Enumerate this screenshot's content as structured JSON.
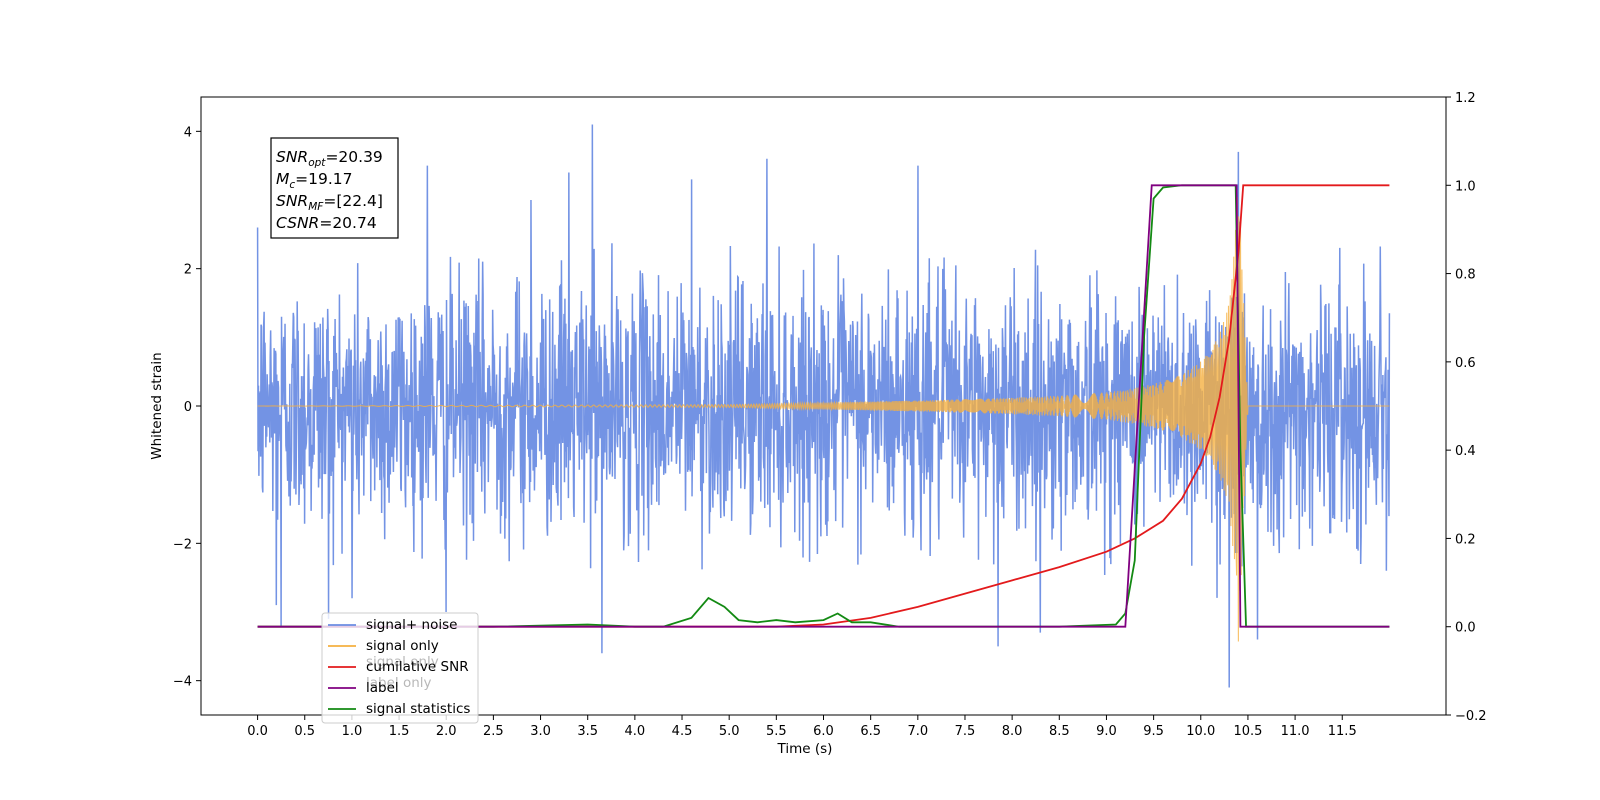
{
  "chart_data": {
    "type": "line",
    "title": "",
    "xlabel": "Time (s)",
    "ylabel": "Whitened strain",
    "ylabel_right": "",
    "xlim": [
      -0.6,
      12.6
    ],
    "ylim": [
      -4.5,
      4.5
    ],
    "ylim_right": [
      -0.2,
      1.2
    ],
    "x_ticks": [
      "0.0",
      "0.5",
      "1.0",
      "1.5",
      "2.0",
      "2.5",
      "3.0",
      "3.5",
      "4.0",
      "4.5",
      "5.0",
      "5.5",
      "6.0",
      "6.5",
      "7.0",
      "7.5",
      "8.0",
      "8.5",
      "9.0",
      "9.5",
      "10.0",
      "10.5",
      "11.0",
      "11.5"
    ],
    "y_ticks": [
      "4",
      "2",
      "0",
      "−2",
      "−4"
    ],
    "y_ticks_right": [
      "1.2",
      "1.0",
      "0.8",
      "0.6",
      "0.4",
      "0.2",
      "0.0",
      "−0.2"
    ],
    "legend_position": "lower-left",
    "grid": false,
    "info_box": {
      "snr_opt": "=20.39",
      "mc": "=19.17",
      "snr_mf": "=[22.4]",
      "csnr": "=20.74"
    },
    "series": [
      {
        "name": "signal+ noise",
        "axis": "left",
        "color": "#6b8de3",
        "description_points": {
          "x": [
            0.0,
            12.0
          ],
          "noise_std": 0.9,
          "extreme_peaks": [
            {
              "x": 0.0,
              "y": 2.6
            },
            {
              "x": 0.2,
              "y": -2.9
            },
            {
              "x": 0.25,
              "y": -3.2
            },
            {
              "x": 0.75,
              "y": 2.6
            },
            {
              "x": 0.75,
              "y": -3.1
            },
            {
              "x": 1.0,
              "y": -2.8
            },
            {
              "x": 1.8,
              "y": 3.5
            },
            {
              "x": 2.0,
              "y": -3.0
            },
            {
              "x": 2.9,
              "y": 3.0
            },
            {
              "x": 3.3,
              "y": 3.4
            },
            {
              "x": 3.55,
              "y": 4.1
            },
            {
              "x": 3.65,
              "y": -3.6
            },
            {
              "x": 4.6,
              "y": 3.3
            },
            {
              "x": 5.4,
              "y": 3.6
            },
            {
              "x": 7.0,
              "y": 3.5
            },
            {
              "x": 7.85,
              "y": -3.5
            },
            {
              "x": 8.3,
              "y": -3.3
            },
            {
              "x": 10.3,
              "y": -4.1
            },
            {
              "x": 10.4,
              "y": 3.7
            },
            {
              "x": 10.6,
              "y": -3.4
            }
          ]
        }
      },
      {
        "name": "signal only",
        "axis": "left",
        "color": "#f5b041",
        "envelope": {
          "t": [
            0.0,
            5.0,
            6.0,
            7.0,
            8.0,
            8.5,
            9.0,
            9.3,
            9.6,
            9.8,
            10.0,
            10.1,
            10.2,
            10.3,
            10.37,
            10.4,
            10.5,
            12.0
          ],
          "amp": [
            0.0,
            0.02,
            0.05,
            0.08,
            0.12,
            0.15,
            0.2,
            0.26,
            0.36,
            0.46,
            0.65,
            0.8,
            1.05,
            1.5,
            2.6,
            3.5,
            0.0,
            0.0
          ]
        }
      },
      {
        "name": "cumilative SNR",
        "axis": "right",
        "color": "#e31a1c",
        "x": [
          0.0,
          5.5,
          6.0,
          6.5,
          7.0,
          7.5,
          8.0,
          8.5,
          9.0,
          9.3,
          9.6,
          9.8,
          10.0,
          10.1,
          10.2,
          10.3,
          10.35,
          10.4,
          10.45,
          12.0
        ],
        "values": [
          0.0,
          0.0,
          0.005,
          0.02,
          0.045,
          0.075,
          0.105,
          0.135,
          0.17,
          0.2,
          0.24,
          0.29,
          0.37,
          0.43,
          0.52,
          0.65,
          0.75,
          0.85,
          1.0,
          1.0
        ]
      },
      {
        "name": "label",
        "axis": "right",
        "color": "#800080",
        "x": [
          0.0,
          9.2,
          9.48,
          10.38,
          10.42,
          12.0
        ],
        "values": [
          0.0,
          0.0,
          1.0,
          1.0,
          0.0,
          0.0
        ]
      },
      {
        "name": "signal statistics",
        "axis": "right",
        "color": "#138a13",
        "x": [
          0.0,
          2.5,
          3.5,
          4.0,
          4.3,
          4.6,
          4.78,
          4.95,
          5.1,
          5.3,
          5.5,
          5.7,
          6.0,
          6.15,
          6.3,
          6.5,
          6.8,
          7.0,
          8.5,
          9.1,
          9.2,
          9.3,
          9.4,
          9.5,
          9.6,
          9.8,
          10.0,
          10.3,
          10.37,
          10.42,
          10.48,
          12.0
        ],
        "values": [
          0.0,
          0.0,
          0.005,
          0.0,
          0.0,
          0.02,
          0.065,
          0.045,
          0.015,
          0.01,
          0.015,
          0.01,
          0.015,
          0.03,
          0.01,
          0.01,
          0.0,
          0.0,
          0.0,
          0.005,
          0.03,
          0.15,
          0.66,
          0.97,
          0.995,
          1.0,
          1.0,
          1.0,
          1.0,
          0.4,
          0.0,
          0.0
        ]
      }
    ],
    "legend_entries": [
      {
        "label": "signal+ noise",
        "color": "#6b8de3"
      },
      {
        "label": "signal only",
        "color": "#f5b041"
      },
      {
        "label": "cumilative SNR",
        "color": "#e31a1c"
      },
      {
        "label": "label",
        "color": "#800080"
      },
      {
        "label": "signal statistics",
        "color": "#138a13"
      }
    ],
    "legend_ghost_text": [
      "signal only",
      "label only"
    ]
  }
}
